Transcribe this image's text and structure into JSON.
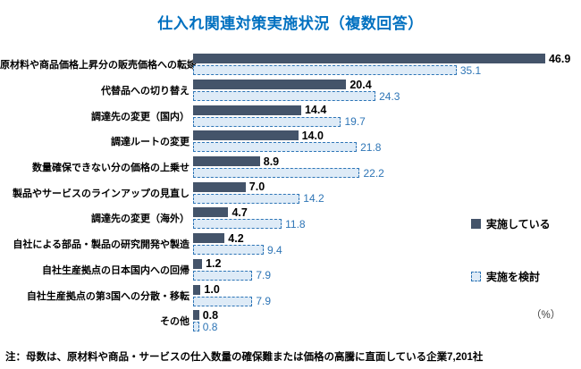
{
  "title": "仕入れ関連対策実施状況（複数回答）",
  "unit_label": "（%）",
  "note": "注：母数は、原材料や商品・サービスの仕入数量の確保難または価格の高騰に直面している企業7,201社",
  "legend": [
    {
      "label": "実施している",
      "swatch": "solid-dark-square"
    },
    {
      "label": "実施を検討",
      "swatch": "dashed-light-square"
    }
  ],
  "colors": {
    "title": "#0070C0",
    "bar_solid": "#44546A",
    "bar_light_fill": "#DEEBF7",
    "bar_light_border": "#2E75B6",
    "value_light_text": "#2E75B6"
  },
  "chart_data": {
    "type": "bar",
    "orientation": "horizontal",
    "title": "仕入れ関連対策実施状況（複数回答）",
    "xlabel": "（%）",
    "ylabel": "",
    "xlim": [
      0,
      50
    ],
    "grid": false,
    "legend_position": "right-middle",
    "categories": [
      "原材料や商品価格上昇分の販売価格への転嫁",
      "代替品への切り替え",
      "調達先の変更（国内）",
      "調達ルートの変更",
      "数量確保できない分の価格の上乗せ",
      "製品やサービスのラインアップの見直し",
      "調達先の変更（海外）",
      "自社による部品・製品の研究開発や製造",
      "自社生産拠点の日本国内への回帰",
      "自社生産拠点の第3国への分散・移転",
      "その他"
    ],
    "series": [
      {
        "name": "実施している",
        "values": [
          46.9,
          20.4,
          14.4,
          14.0,
          8.9,
          7.0,
          4.7,
          4.2,
          1.2,
          1.0,
          0.8
        ],
        "labels": [
          "46.9",
          "20.4",
          "14.4",
          "14.0",
          "8.9",
          "7.0",
          "4.7",
          "4.2",
          "1.2",
          "1.0",
          "0.8"
        ]
      },
      {
        "name": "実施を検討",
        "values": [
          35.1,
          24.3,
          19.7,
          21.8,
          22.2,
          14.2,
          11.8,
          9.4,
          7.9,
          7.9,
          0.8
        ],
        "labels": [
          "35.1",
          "24.3",
          "19.7",
          "21.8",
          "22.2",
          "14.2",
          "11.8",
          "9.4",
          "7.9",
          "7.9",
          "0.8"
        ]
      }
    ]
  }
}
